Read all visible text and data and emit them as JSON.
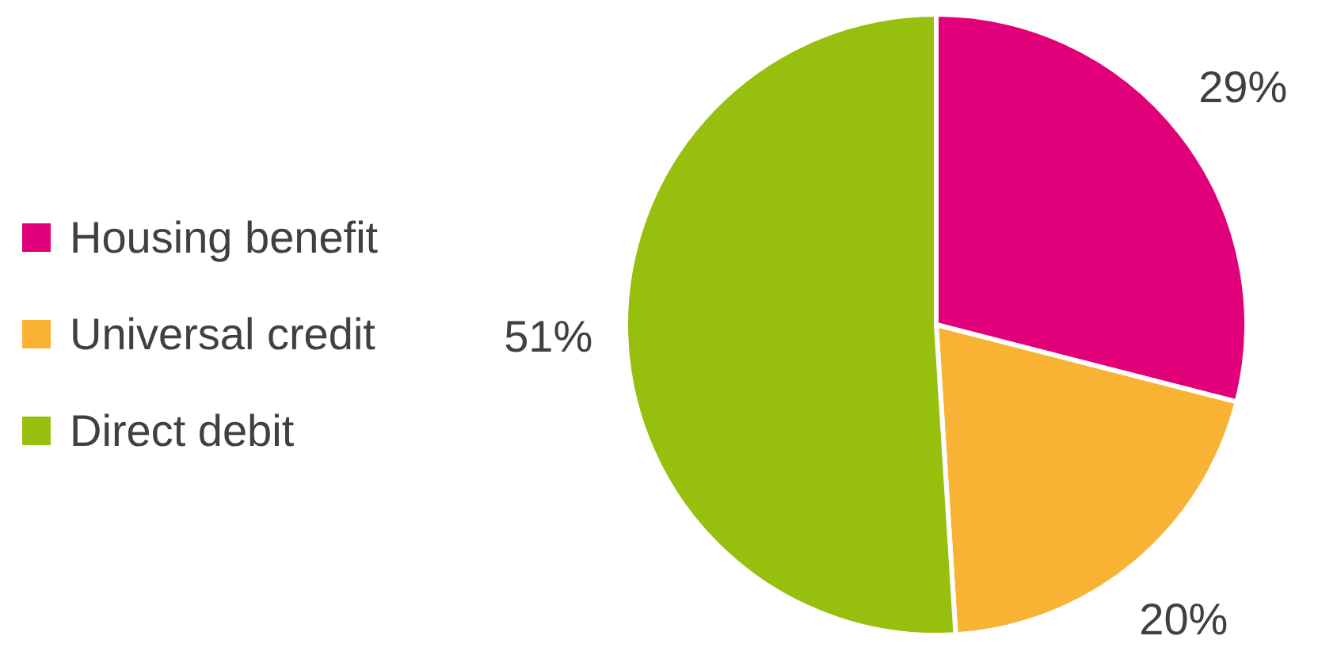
{
  "chart_data": {
    "type": "pie",
    "categories": [
      "Housing benefit",
      "Universal credit",
      "Direct debit"
    ],
    "values": [
      29,
      20,
      51
    ],
    "colors": [
      "#e2007a",
      "#f8b334",
      "#97c00e"
    ],
    "value_labels": [
      "29%",
      "20%",
      "51%"
    ],
    "legend": "left"
  }
}
